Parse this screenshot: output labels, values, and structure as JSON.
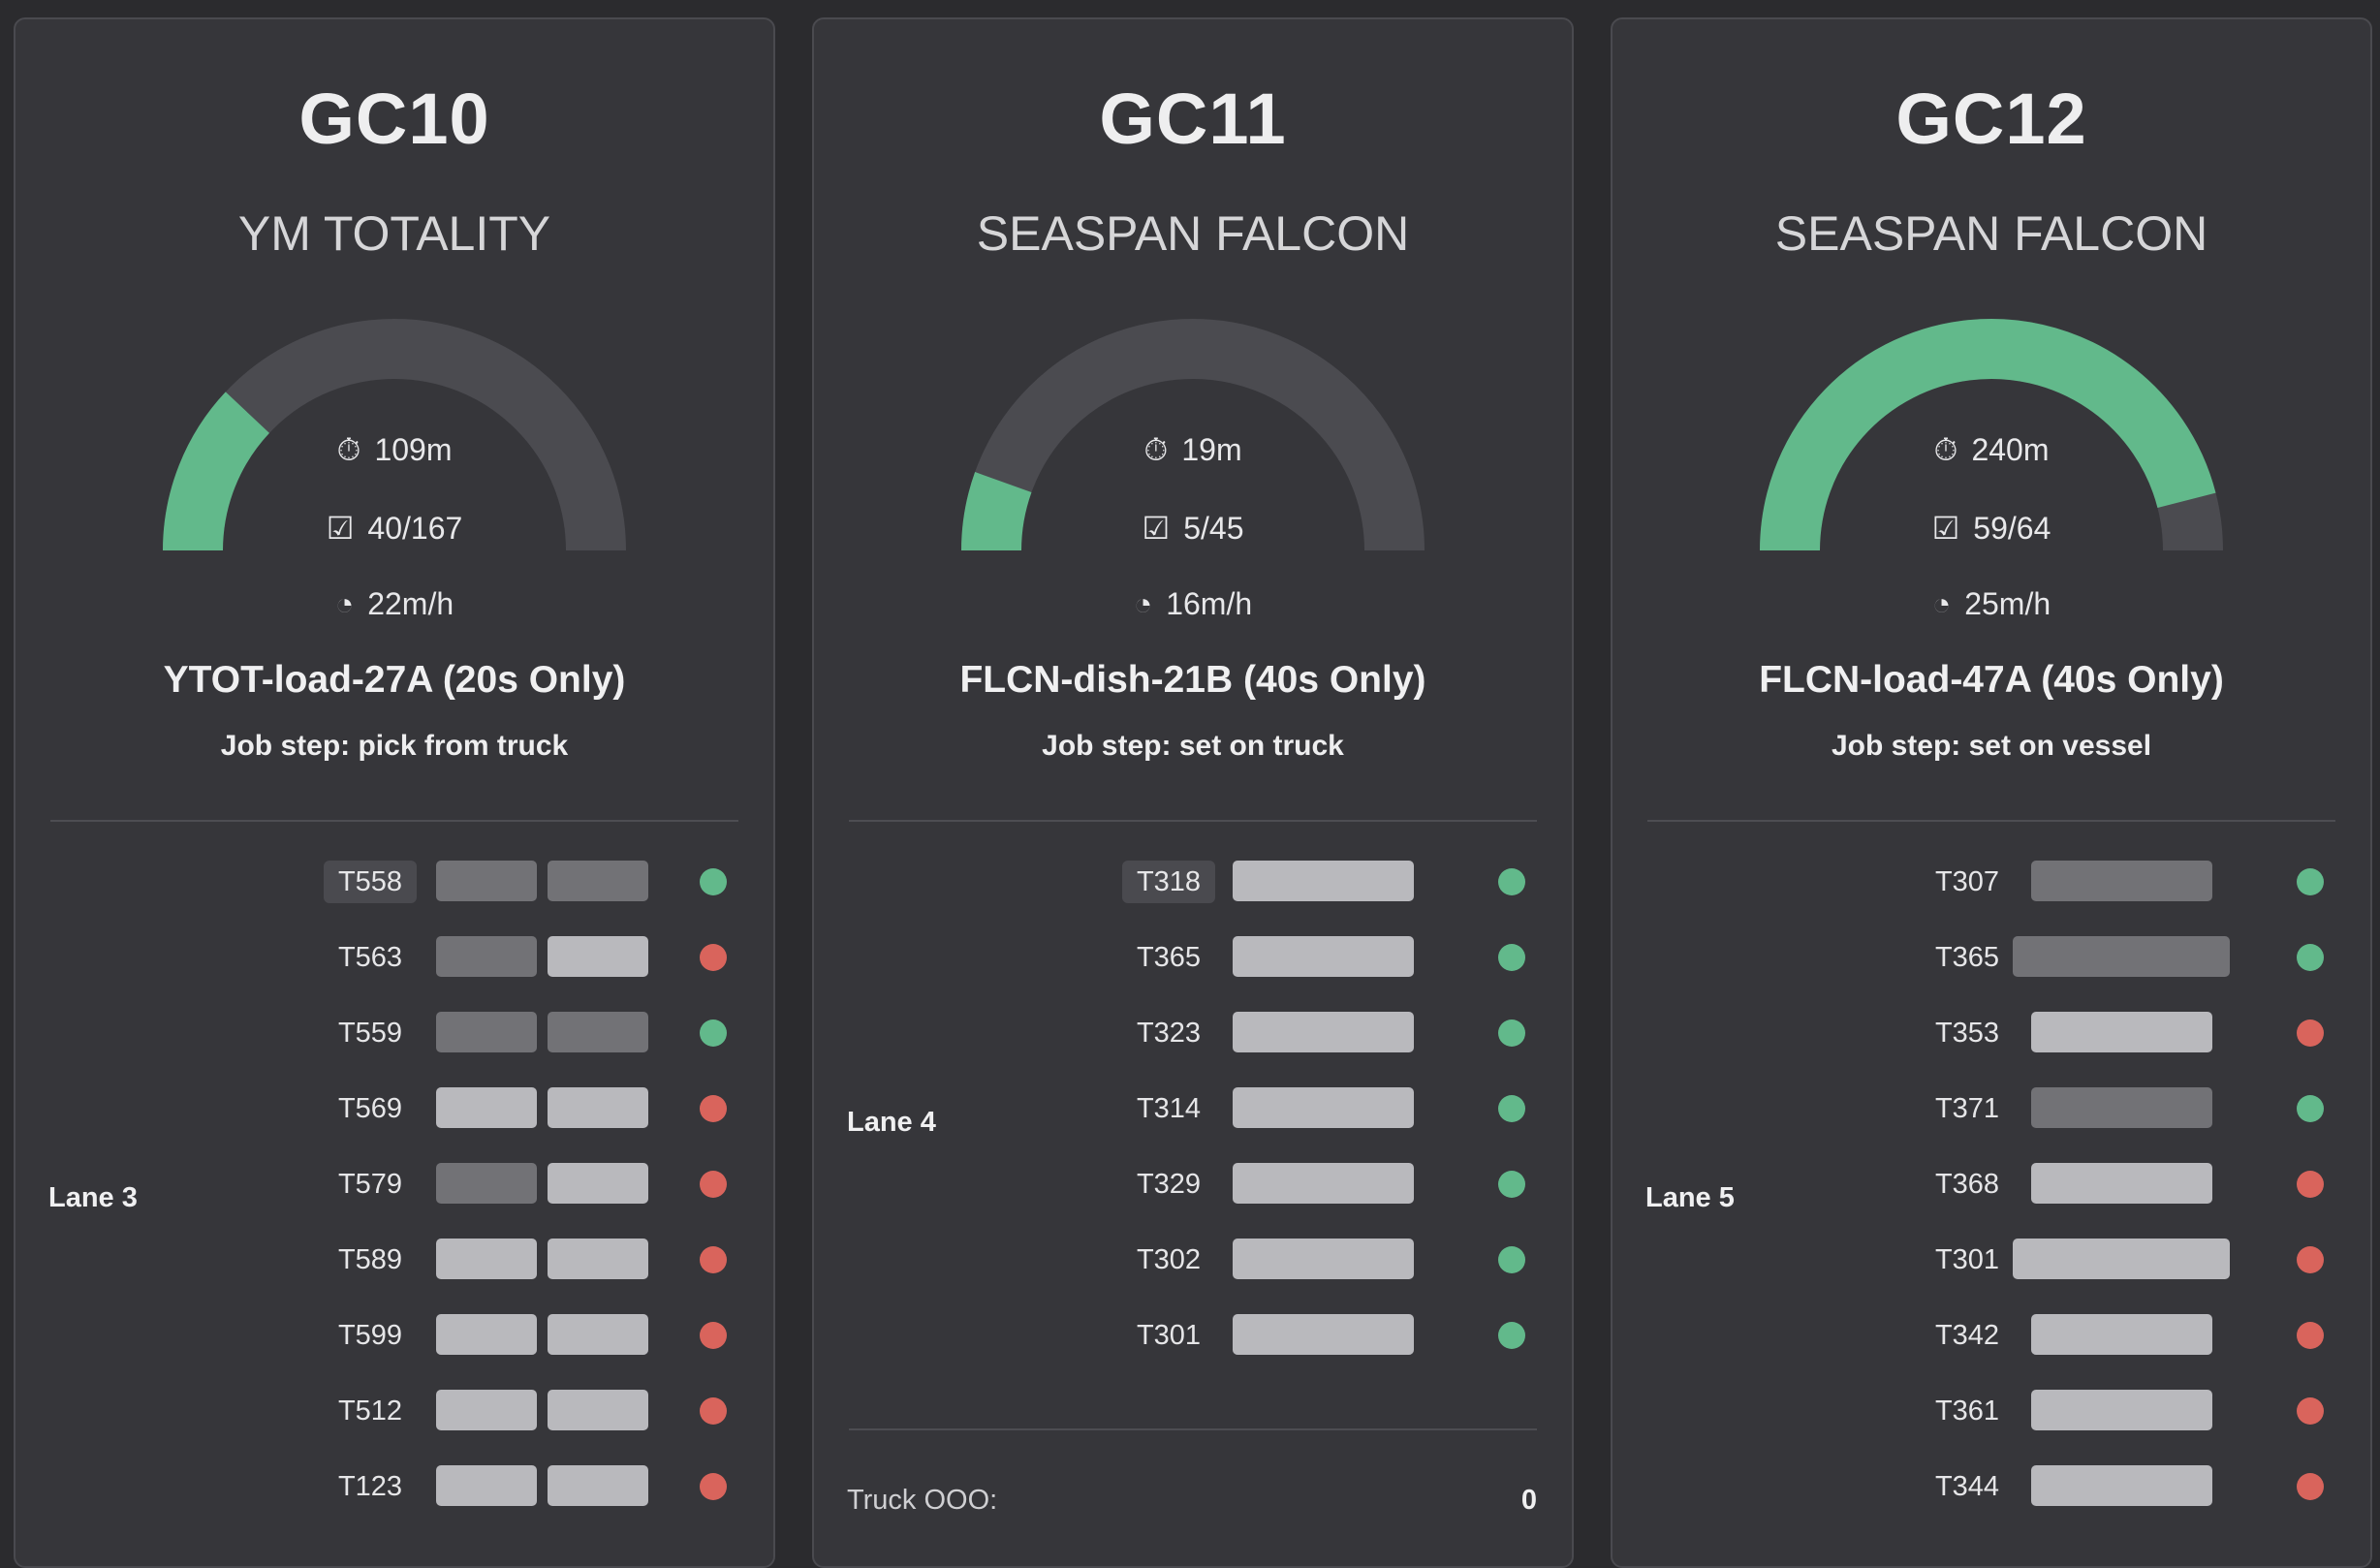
{
  "colors": {
    "background": "#2b2b2e",
    "panel": "#36363a",
    "gauge_track": "#4b4b50",
    "gauge_fill": "#62b98b",
    "status_green": "#62b98b",
    "status_red": "#d9645c",
    "bar_light": "#b9b9bd",
    "bar_dark": "#727276"
  },
  "icons": {
    "time": "stopwatch-icon",
    "count": "checkbox-icon",
    "rate": "speedometer-icon"
  },
  "cranes": [
    {
      "id": "GC10",
      "vessel": "YM TOTALITY",
      "progress_fraction": 0.24,
      "time": "109m",
      "count": "40/167",
      "rate": "22m/h",
      "job": "YTOT-load-27A (20s Only)",
      "job_step": "Job step: pick from truck",
      "lane": "Lane 3",
      "trucks": [
        {
          "id": "T558",
          "highlight": true,
          "bars": [
            "dark",
            "dark"
          ],
          "status": "green"
        },
        {
          "id": "T563",
          "highlight": false,
          "bars": [
            "dark",
            "light"
          ],
          "status": "red"
        },
        {
          "id": "T559",
          "highlight": false,
          "bars": [
            "dark",
            "dark"
          ],
          "status": "green"
        },
        {
          "id": "T569",
          "highlight": false,
          "bars": [
            "light",
            "light"
          ],
          "status": "red"
        },
        {
          "id": "T579",
          "highlight": false,
          "bars": [
            "dark",
            "light"
          ],
          "status": "red"
        },
        {
          "id": "T589",
          "highlight": false,
          "bars": [
            "light",
            "light"
          ],
          "status": "red"
        },
        {
          "id": "T599",
          "highlight": false,
          "bars": [
            "light",
            "light"
          ],
          "status": "red"
        },
        {
          "id": "T512",
          "highlight": false,
          "bars": [
            "light",
            "light"
          ],
          "status": "red"
        },
        {
          "id": "T123",
          "highlight": false,
          "bars": [
            "light",
            "light"
          ],
          "status": "red"
        }
      ]
    },
    {
      "id": "GC11",
      "vessel": "SEASPAN FALCON",
      "progress_fraction": 0.11,
      "time": "19m",
      "count": "5/45",
      "rate": "16m/h",
      "job": "FLCN-dish-21B (40s Only)",
      "job_step": "Job step: set on truck",
      "lane": "Lane 4",
      "trucks": [
        {
          "id": "T318",
          "highlight": true,
          "bars": [
            "light"
          ],
          "status": "green"
        },
        {
          "id": "T365",
          "highlight": false,
          "bars": [
            "light"
          ],
          "status": "green"
        },
        {
          "id": "T323",
          "highlight": false,
          "bars": [
            "light"
          ],
          "status": "green"
        },
        {
          "id": "T314",
          "highlight": false,
          "bars": [
            "light"
          ],
          "status": "green"
        },
        {
          "id": "T329",
          "highlight": false,
          "bars": [
            "light"
          ],
          "status": "green"
        },
        {
          "id": "T302",
          "highlight": false,
          "bars": [
            "light"
          ],
          "status": "green"
        },
        {
          "id": "T301",
          "highlight": false,
          "bars": [
            "light"
          ],
          "status": "green"
        }
      ],
      "truck_ooo_label": "Truck OOO:",
      "truck_ooo_value": "0"
    },
    {
      "id": "GC12",
      "vessel": "SEASPAN FALCON",
      "progress_fraction": 0.92,
      "time": "240m",
      "count": "59/64",
      "rate": "25m/h",
      "job": "FLCN-load-47A (40s Only)",
      "job_step": "Job step: set on vessel",
      "lane": "Lane 5",
      "trucks": [
        {
          "id": "T307",
          "highlight": false,
          "bars": [
            "dark"
          ],
          "status": "green"
        },
        {
          "id": "T365",
          "highlight": false,
          "bars": [
            "dark-wide"
          ],
          "status": "green"
        },
        {
          "id": "T353",
          "highlight": false,
          "bars": [
            "light"
          ],
          "status": "red"
        },
        {
          "id": "T371",
          "highlight": false,
          "bars": [
            "dark"
          ],
          "status": "green"
        },
        {
          "id": "T368",
          "highlight": false,
          "bars": [
            "light"
          ],
          "status": "red"
        },
        {
          "id": "T301",
          "highlight": false,
          "bars": [
            "light-wide"
          ],
          "status": "red"
        },
        {
          "id": "T342",
          "highlight": false,
          "bars": [
            "light"
          ],
          "status": "red"
        },
        {
          "id": "T361",
          "highlight": false,
          "bars": [
            "light"
          ],
          "status": "red"
        },
        {
          "id": "T344",
          "highlight": false,
          "bars": [
            "light"
          ],
          "status": "red"
        }
      ]
    }
  ]
}
